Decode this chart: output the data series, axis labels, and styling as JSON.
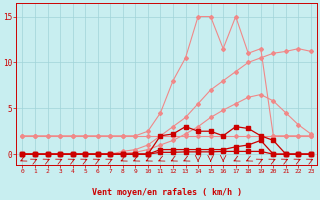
{
  "x": [
    0,
    1,
    2,
    3,
    4,
    5,
    6,
    7,
    8,
    9,
    10,
    11,
    12,
    13,
    14,
    15,
    16,
    17,
    18,
    19,
    20,
    21,
    22,
    23
  ],
  "line_flat": [
    2,
    2,
    2,
    2,
    2,
    2,
    2,
    2,
    2,
    2,
    2,
    2,
    2,
    2,
    2,
    2,
    2,
    2,
    2,
    2,
    2,
    2,
    2,
    2
  ],
  "line_gust": [
    2,
    2,
    2,
    2,
    2,
    2,
    2,
    2,
    2,
    2,
    2.5,
    4.5,
    8,
    10.5,
    15,
    15,
    11.5,
    15,
    11,
    11.5,
    2,
    2,
    2,
    2
  ],
  "line_ramp1": [
    0,
    0,
    0,
    0,
    0,
    0,
    0,
    0,
    0.3,
    0.5,
    1.0,
    2.0,
    3.0,
    4.0,
    5.5,
    7.0,
    8.0,
    9.0,
    10.0,
    10.5,
    11.0,
    11.2,
    11.5,
    11.2
  ],
  "line_ramp2": [
    0,
    0,
    0,
    0,
    0,
    0,
    0,
    0,
    0.1,
    0.2,
    0.5,
    1.0,
    1.5,
    2.2,
    3.0,
    4.0,
    4.8,
    5.5,
    6.2,
    6.5,
    5.8,
    4.5,
    3.2,
    2.2
  ],
  "line_dark1": [
    0,
    0,
    0,
    0,
    0,
    0,
    0,
    0,
    0,
    0,
    0,
    2.0,
    2.2,
    3.0,
    2.5,
    2.5,
    2.0,
    3.0,
    2.8,
    2.0,
    1.5,
    0,
    0,
    0
  ],
  "line_dark2": [
    0,
    0,
    0,
    0,
    0,
    0,
    0,
    0,
    0,
    0,
    0,
    0.5,
    0.5,
    0.5,
    0.5,
    0.5,
    0.5,
    0.8,
    1.0,
    1.5,
    0,
    0,
    0,
    0
  ],
  "line_dark3": [
    0,
    0,
    0,
    0,
    0,
    0,
    0,
    0,
    0,
    0,
    0,
    0.2,
    0.2,
    0.25,
    0.25,
    0.25,
    0.3,
    0.3,
    0.3,
    0.3,
    0,
    0,
    0,
    0
  ],
  "bg_color": "#c8eef0",
  "grid_color": "#a0d4d8",
  "pink_color": "#f08888",
  "dark_red": "#cc0000",
  "xlabel": "Vent moyen/en rafales ( km/h )",
  "yticks": [
    0,
    5,
    10,
    15
  ],
  "ylim": [
    -1.2,
    16.5
  ],
  "xlim": [
    -0.5,
    23.5
  ],
  "arrow_angles": [
    225,
    45,
    45,
    45,
    45,
    45,
    45,
    45,
    225,
    225,
    225,
    225,
    225,
    225,
    180,
    180,
    180,
    225,
    225,
    45,
    45,
    45,
    45,
    45
  ]
}
